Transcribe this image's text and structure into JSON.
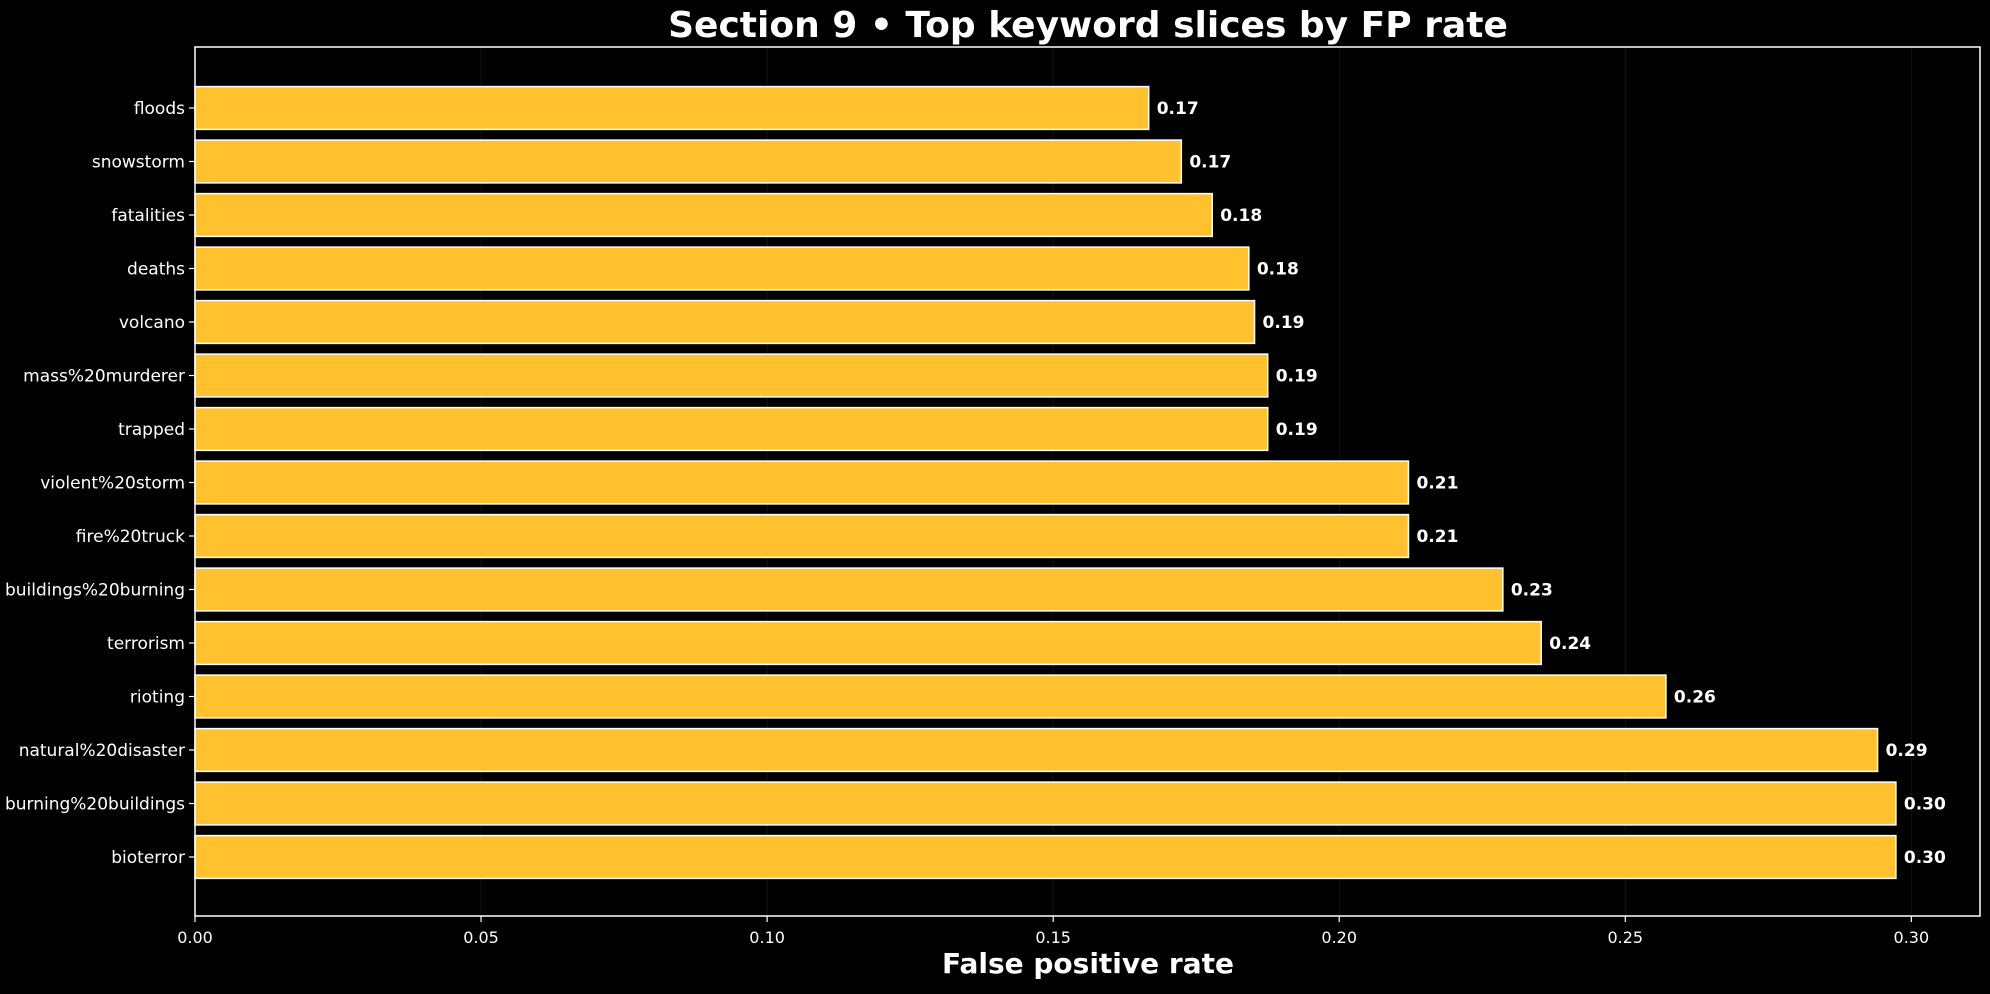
{
  "chart_data": {
    "type": "bar",
    "orientation": "horizontal",
    "title": "Section 9 • Top keyword slices by FP rate",
    "xlabel": "False positive rate",
    "ylabel": "",
    "xlim": [
      0.0,
      0.312
    ],
    "x_ticks": [
      0.0,
      0.05,
      0.1,
      0.15,
      0.2,
      0.25,
      0.3
    ],
    "x_tick_labels": [
      "0.00",
      "0.05",
      "0.10",
      "0.15",
      "0.20",
      "0.25",
      "0.30"
    ],
    "grid": "vertical-faint",
    "bar_color": "#FFC22E",
    "bar_edge_color": "#ffffff",
    "background": "#000000",
    "categories": [
      "floods",
      "snowstorm",
      "fatalities",
      "deaths",
      "volcano",
      "mass%20murderer",
      "trapped",
      "violent%20storm",
      "fire%20truck",
      "buildings%20burning",
      "terrorism",
      "rioting",
      "natural%20disaster",
      "burning%20buildings",
      "bioterror"
    ],
    "values": [
      0.1667,
      0.1724,
      0.1778,
      0.1842,
      0.1852,
      0.1875,
      0.1875,
      0.2121,
      0.2121,
      0.2286,
      0.2353,
      0.2571,
      0.2941,
      0.2973,
      0.2973
    ],
    "value_labels": [
      "0.17",
      "0.17",
      "0.18",
      "0.18",
      "0.19",
      "0.19",
      "0.19",
      "0.21",
      "0.21",
      "0.23",
      "0.24",
      "0.26",
      "0.29",
      "0.30",
      "0.30"
    ]
  }
}
